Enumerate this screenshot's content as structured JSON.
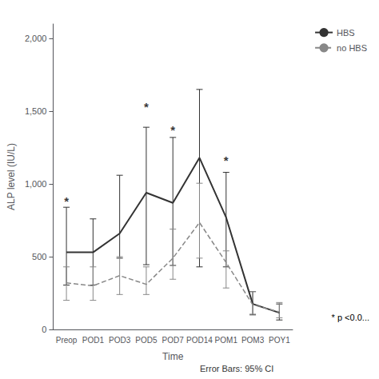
{
  "chart_data": {
    "type": "line",
    "ylabel": "ALP level (IU/L)",
    "xlabel": "Time",
    "caption": "Error Bars: 95% CI",
    "footnote": "* p <0.0...",
    "categories": [
      "Preop",
      "POD1",
      "POD3",
      "POD5",
      "POD7",
      "POD14",
      "POM1",
      "POM3",
      "POY1"
    ],
    "series": [
      {
        "name": "HBS",
        "color": "#333333",
        "line_style": "solid",
        "values": [
          530,
          530,
          660,
          940,
          870,
          1180,
          770,
          175,
          115
        ],
        "ci_low": [
          305,
          305,
          490,
          445,
          440,
          430,
          430,
          100,
          65
        ],
        "ci_high": [
          840,
          760,
          1060,
          1390,
          1320,
          1650,
          1080,
          260,
          175
        ]
      },
      {
        "name": "no HBS",
        "color": "#888888",
        "line_style": "dashed",
        "values": [
          320,
          300,
          370,
          310,
          490,
          735,
          460,
          170,
          120
        ],
        "ci_low": [
          200,
          200,
          240,
          240,
          345,
          490,
          285,
          105,
          80
        ],
        "ci_high": [
          430,
          430,
          500,
          430,
          690,
          1005,
          540,
          260,
          185
        ]
      }
    ],
    "annotations": [
      {
        "text": "*",
        "x": "Preop",
        "y": 840
      },
      {
        "text": "*",
        "x": "POD5",
        "y": 1490
      },
      {
        "text": "*",
        "x": "POD7",
        "y": 1330
      },
      {
        "text": "*",
        "x": "POM1",
        "y": 1120
      }
    ],
    "ylim": [
      0,
      2100
    ],
    "yticks": [
      0,
      500,
      {
        "value": 1000,
        "label": "1,000"
      },
      {
        "value": 1500,
        "label": "1,500"
      },
      {
        "value": 2000,
        "label": "2,000"
      }
    ],
    "grid": false,
    "legend": "right"
  }
}
